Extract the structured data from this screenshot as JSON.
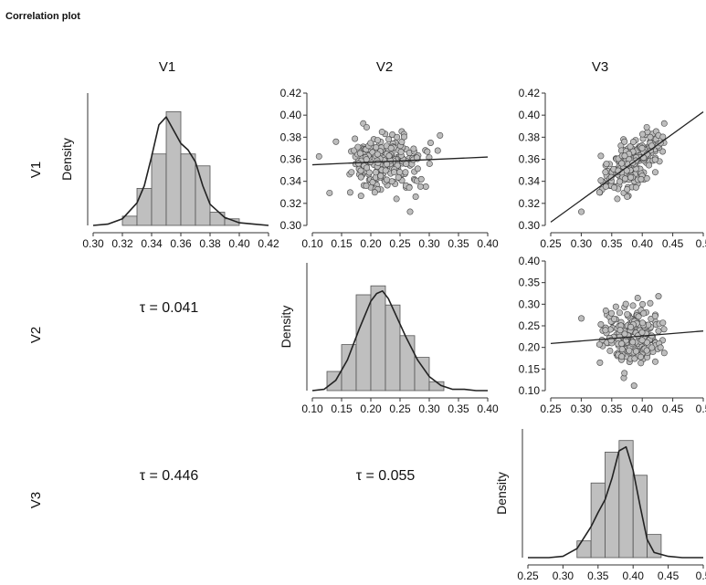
{
  "title": "Correlation plot",
  "chart_data": {
    "type": "correlation-matrix",
    "variables": [
      "V1",
      "V2",
      "V3"
    ],
    "diagonal": [
      {
        "id": "V1",
        "type": "histogram-density",
        "ylabel": "Density",
        "xlim": [
          0.3,
          0.42
        ],
        "xticks": [
          "0.30",
          "0.32",
          "0.34",
          "0.36",
          "0.38",
          "0.40",
          "0.42"
        ],
        "bins": [
          0.32,
          0.33,
          0.34,
          0.35,
          0.36,
          0.37,
          0.38,
          0.39,
          0.4
        ],
        "heights": [
          0.07,
          0.28,
          0.54,
          0.86,
          0.54,
          0.45,
          0.1,
          0.05
        ],
        "density_x": [
          0.3,
          0.31,
          0.32,
          0.33,
          0.335,
          0.34,
          0.345,
          0.35,
          0.355,
          0.36,
          0.365,
          0.37,
          0.375,
          0.38,
          0.39,
          0.4,
          0.41,
          0.42
        ],
        "density_y": [
          0.0,
          0.01,
          0.05,
          0.17,
          0.3,
          0.52,
          0.76,
          0.82,
          0.72,
          0.62,
          0.57,
          0.48,
          0.3,
          0.16,
          0.06,
          0.02,
          0.01,
          0.0
        ]
      },
      {
        "id": "V2",
        "type": "histogram-density",
        "ylabel": "Density",
        "xlim": [
          0.1,
          0.4
        ],
        "xticks": [
          "0.10",
          "0.15",
          "0.20",
          "0.25",
          "0.30",
          "0.35",
          "0.40"
        ],
        "bins": [
          0.125,
          0.15,
          0.175,
          0.2,
          0.225,
          0.25,
          0.275,
          0.3,
          0.325
        ],
        "heights": [
          0.15,
          0.36,
          0.75,
          0.82,
          0.67,
          0.43,
          0.26,
          0.07
        ],
        "density_x": [
          0.1,
          0.12,
          0.14,
          0.16,
          0.18,
          0.2,
          0.21,
          0.22,
          0.23,
          0.24,
          0.26,
          0.28,
          0.3,
          0.32,
          0.34,
          0.36,
          0.38,
          0.4
        ],
        "density_y": [
          0.0,
          0.01,
          0.08,
          0.24,
          0.48,
          0.7,
          0.76,
          0.78,
          0.72,
          0.62,
          0.42,
          0.24,
          0.11,
          0.04,
          0.01,
          0.01,
          0.0,
          0.0
        ]
      },
      {
        "id": "V3",
        "type": "histogram-density",
        "ylabel": "Density",
        "xlim": [
          0.25,
          0.5
        ],
        "xticks": [
          "0.25",
          "0.30",
          "0.35",
          "0.40",
          "0.45",
          "0.5"
        ],
        "bins": [
          0.32,
          0.34,
          0.36,
          0.38,
          0.4,
          0.42,
          0.44
        ],
        "heights": [
          0.13,
          0.58,
          0.82,
          0.91,
          0.64,
          0.18
        ],
        "density_x": [
          0.25,
          0.28,
          0.3,
          0.32,
          0.34,
          0.35,
          0.36,
          0.37,
          0.38,
          0.39,
          0.4,
          0.41,
          0.42,
          0.43,
          0.45,
          0.47,
          0.5
        ],
        "density_y": [
          0.0,
          0.0,
          0.01,
          0.07,
          0.24,
          0.35,
          0.45,
          0.62,
          0.83,
          0.86,
          0.68,
          0.4,
          0.14,
          0.04,
          0.01,
          0.0,
          0.0
        ]
      }
    ],
    "upper": [
      {
        "id": "V1-V2",
        "type": "scatter",
        "xlim": [
          0.1,
          0.4
        ],
        "ylim": [
          0.3,
          0.42
        ],
        "xticks": [
          "0.10",
          "0.15",
          "0.20",
          "0.25",
          "0.30",
          "0.35",
          "0.40"
        ],
        "yticks": [
          "0.30",
          "0.32",
          "0.34",
          "0.36",
          "0.38",
          "0.40",
          "0.42"
        ],
        "fit_line": [
          [
            0.1,
            0.355
          ],
          [
            0.4,
            0.362
          ]
        ]
      },
      {
        "id": "V1-V3",
        "type": "scatter",
        "xlim": [
          0.25,
          0.5
        ],
        "ylim": [
          0.3,
          0.42
        ],
        "xticks": [
          "0.25",
          "0.30",
          "0.35",
          "0.40",
          "0.45",
          "0.5"
        ],
        "yticks": [
          "0.30",
          "0.32",
          "0.34",
          "0.36",
          "0.38",
          "0.40",
          "0.42"
        ],
        "fit_line": [
          [
            0.25,
            0.303
          ],
          [
            0.5,
            0.403
          ]
        ]
      },
      {
        "id": "V2-V3",
        "type": "scatter",
        "xlim": [
          0.25,
          0.5
        ],
        "ylim": [
          0.1,
          0.4
        ],
        "xticks": [
          "0.25",
          "0.30",
          "0.35",
          "0.40",
          "0.45",
          "0.5"
        ],
        "yticks": [
          "0.10",
          "0.15",
          "0.20",
          "0.25",
          "0.30",
          "0.35",
          "0.40"
        ],
        "fit_line": [
          [
            0.25,
            0.209
          ],
          [
            0.5,
            0.238
          ]
        ]
      }
    ],
    "lower": [
      {
        "id": "V2-V1",
        "label": "τ = 0.041"
      },
      {
        "id": "V3-V1",
        "label": "τ = 0.446"
      },
      {
        "id": "V3-V2",
        "label": "τ = 0.055"
      }
    ],
    "colors": {
      "bar_fill": "#bfbfbf",
      "point_fill": "#bdbdbd",
      "stroke": "#222222"
    }
  }
}
